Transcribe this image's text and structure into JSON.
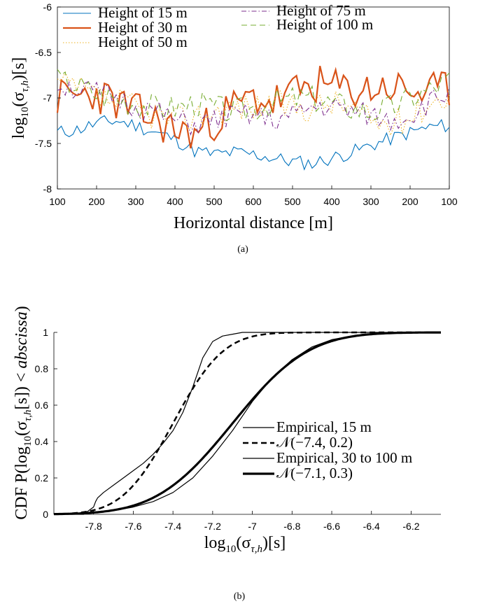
{
  "chart_data": [
    {
      "type": "line",
      "caption": "(a)",
      "xlabel": "Horizontal distance [m]",
      "ylabel": "log10(στ,h)[s]",
      "ylabel_parts": [
        "log",
        "10",
        "(σ",
        "τ,h",
        ")[s]"
      ],
      "xtick_labels": [
        "100",
        "200",
        "300",
        "400",
        "500",
        "600",
        "500",
        "400",
        "300",
        "200",
        "100"
      ],
      "ytick_labels": [
        "-6",
        "-6.5",
        "-7",
        "-7.5",
        "-8"
      ],
      "xlim": [
        0,
        1000
      ],
      "ylim": [
        -8,
        -6
      ],
      "x_note": "Horizontal distance goes 100 -> 600 -> 100 m along the flight path",
      "legend_position": "top-left (two columns)",
      "sample_step": 10,
      "series": [
        {
          "name": "Height of 15 m",
          "color": "#0072BD",
          "style": "solid",
          "key_x": [
            0,
            50,
            100,
            150,
            200,
            250,
            300,
            350,
            400,
            450,
            500,
            550,
            600,
            650,
            700,
            750,
            800,
            850,
            900,
            950,
            1000
          ],
          "key_y": [
            -7.38,
            -7.35,
            -7.28,
            -7.25,
            -7.3,
            -7.38,
            -7.45,
            -7.58,
            -7.62,
            -7.6,
            -7.62,
            -7.66,
            -7.7,
            -7.72,
            -7.66,
            -7.6,
            -7.52,
            -7.45,
            -7.38,
            -7.32,
            -7.3
          ],
          "noise": 0.08,
          "seed": 11
        },
        {
          "name": "Height of 30 m",
          "color": "#D95319",
          "style": "solid",
          "width": 2.2,
          "key_x": [
            0,
            50,
            100,
            150,
            200,
            250,
            300,
            350,
            400,
            450,
            500,
            550,
            600,
            650,
            700,
            750,
            800,
            850,
            900,
            950,
            1000
          ],
          "key_y": [
            -7.0,
            -6.98,
            -6.95,
            -7.05,
            -7.15,
            -7.25,
            -7.35,
            -7.4,
            -7.25,
            -7.1,
            -7.0,
            -7.05,
            -6.95,
            -6.85,
            -6.88,
            -6.92,
            -6.9,
            -6.88,
            -6.92,
            -6.95,
            -6.9
          ],
          "noise": 0.22,
          "seed": 23
        },
        {
          "name": "Height of 50 m",
          "color": "#EDB120",
          "style": "dotted",
          "key_x": [
            0,
            50,
            100,
            150,
            200,
            250,
            300,
            350,
            400,
            450,
            500,
            550,
            600,
            650,
            700,
            750,
            800,
            850,
            900,
            950,
            1000
          ],
          "key_y": [
            -6.85,
            -6.9,
            -7.0,
            -7.05,
            -7.1,
            -7.2,
            -7.25,
            -7.2,
            -7.15,
            -7.1,
            -7.1,
            -7.05,
            -7.1,
            -7.1,
            -7.05,
            -7.1,
            -7.25,
            -7.3,
            -7.2,
            -7.05,
            -6.95
          ],
          "noise": 0.16,
          "seed": 37
        },
        {
          "name": "Height of 75 m",
          "color": "#7E2F8E",
          "style": "dashdot",
          "key_x": [
            0,
            50,
            100,
            150,
            200,
            250,
            300,
            350,
            400,
            450,
            500,
            550,
            600,
            650,
            700,
            750,
            800,
            850,
            900,
            950,
            1000
          ],
          "key_y": [
            -6.85,
            -6.9,
            -6.95,
            -7.0,
            -7.1,
            -7.15,
            -7.25,
            -7.3,
            -7.25,
            -7.2,
            -7.2,
            -7.25,
            -7.2,
            -7.1,
            -7.1,
            -7.15,
            -7.2,
            -7.25,
            -7.2,
            -7.05,
            -6.95
          ],
          "noise": 0.13,
          "seed": 51
        },
        {
          "name": "Height of 100 m",
          "color": "#77AC30",
          "style": "dashed",
          "key_x": [
            0,
            50,
            100,
            150,
            200,
            250,
            300,
            350,
            400,
            450,
            500,
            550,
            600,
            650,
            700,
            750,
            800,
            850,
            900,
            950,
            1000
          ],
          "key_y": [
            -6.8,
            -6.85,
            -6.95,
            -7.0,
            -7.05,
            -7.1,
            -7.1,
            -7.05,
            -7.1,
            -7.15,
            -7.1,
            -7.05,
            -7.0,
            -7.0,
            -7.05,
            -7.1,
            -7.15,
            -7.1,
            -7.0,
            -6.9,
            -6.8
          ],
          "noise": 0.15,
          "seed": 67
        }
      ]
    },
    {
      "type": "line",
      "caption": "(b)",
      "xlabel": "log10(στ,h)[s]",
      "xlabel_parts": [
        "log",
        "10",
        "(σ",
        "τ,h",
        ")[s]"
      ],
      "ylabel": "CDF P(log10(στ,h[s]) < abscissa)",
      "ylabel_parts": [
        "CDF  P(log",
        "10",
        "(σ",
        "τ,h",
        "[s]) < ",
        "abscissa",
        ")"
      ],
      "xtick_values": [
        -7.8,
        -7.6,
        -7.4,
        -7.2,
        -7,
        -6.8,
        -6.6,
        -6.4,
        -6.2
      ],
      "xtick_labels": [
        "-7.8",
        "-7.6",
        "-7.4",
        "-7.2",
        "-7",
        "-6.8",
        "-6.6",
        "-6.4",
        "-6.2"
      ],
      "ytick_values": [
        0,
        0.2,
        0.4,
        0.6,
        0.8,
        1
      ],
      "ytick_labels": [
        "0",
        "0.2",
        "0.4",
        "0.6",
        "0.8",
        "1"
      ],
      "xlim": [
        -8.0,
        -6.05
      ],
      "ylim": [
        0,
        1
      ],
      "legend_position": "center-right",
      "series": [
        {
          "name": "Empirical, 15 m",
          "style": "solid",
          "width": 1.2,
          "x": [
            -8.0,
            -7.85,
            -7.8,
            -7.79,
            -7.78,
            -7.75,
            -7.7,
            -7.65,
            -7.6,
            -7.55,
            -7.5,
            -7.45,
            -7.4,
            -7.35,
            -7.3,
            -7.25,
            -7.2,
            -7.15,
            -7.1,
            -7.05,
            -7.0,
            -6.05
          ],
          "y": [
            0.0,
            0.0,
            0.04,
            0.07,
            0.09,
            0.12,
            0.16,
            0.2,
            0.24,
            0.28,
            0.33,
            0.39,
            0.46,
            0.56,
            0.7,
            0.86,
            0.95,
            0.98,
            0.99,
            1.0,
            1.0,
            1.0
          ]
        },
        {
          "name": "N(-7.4, 0.2)",
          "name_parts": [
            "𝒩(−7.4, 0.2)"
          ],
          "style": "dashed",
          "width": 2.5,
          "dist": {
            "mu": -7.4,
            "sigma": 0.2
          }
        },
        {
          "name": "Empirical, 30 to 100 m",
          "style": "solid",
          "width": 1.2,
          "x": [
            -8.0,
            -7.8,
            -7.7,
            -7.6,
            -7.5,
            -7.4,
            -7.3,
            -7.2,
            -7.1,
            -7.0,
            -6.9,
            -6.8,
            -6.7,
            -6.6,
            -6.5,
            -6.4,
            -6.3,
            -6.2,
            -6.05
          ],
          "y": [
            0.0,
            0.01,
            0.02,
            0.04,
            0.07,
            0.12,
            0.2,
            0.32,
            0.46,
            0.62,
            0.75,
            0.85,
            0.92,
            0.96,
            0.98,
            0.99,
            1.0,
            1.0,
            1.0
          ]
        },
        {
          "name": "N(-7.1, 0.3)",
          "name_parts": [
            "𝒩(−7.1, 0.3)"
          ],
          "style": "solid",
          "width": 3.2,
          "dist": {
            "mu": -7.1,
            "sigma": 0.3
          }
        }
      ]
    }
  ]
}
